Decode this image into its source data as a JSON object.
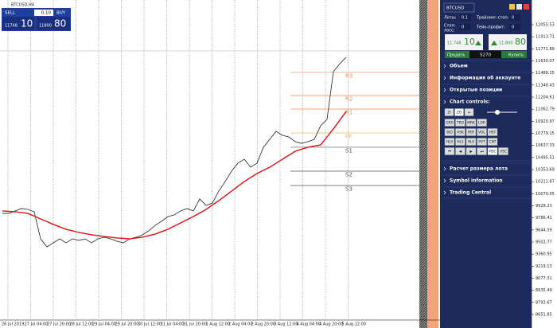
{
  "window": {
    "title": "BTCUSD,H4"
  },
  "trade_panel": {
    "sell": "SELL",
    "buy": "BUY",
    "lot": "0.10",
    "bid_prefix": "11748",
    "bid_big": "10",
    "ask_prefix": "11800",
    "ask_big": "80"
  },
  "chart_data": {
    "type": "line",
    "x_labels": [
      "26 Jul 2019",
      "27 Jul 04:00",
      "27 Jul 20:00",
      "28 Jul 12:00",
      "29 Jul 04:00",
      "29 Jul 20:00",
      "30 Jul 12:00",
      "31 Jul 04:00",
      "31 Jul 20:00",
      "1 Aug 12:00",
      "2 Aug 04:00",
      "2 Aug 20:00",
      "3 Aug 12:00",
      "4 Aug 04:00",
      "4 Aug 20:00",
      "5 Aug 12:00"
    ],
    "series": [
      {
        "color": "#222222",
        "values": [
          9839,
          9839,
          9868,
          9896,
          9886,
          9858,
          9540,
          9447,
          9493,
          9540,
          9493,
          9540,
          9522,
          9540,
          9493,
          9540,
          9559,
          9540,
          9512,
          9493,
          9540,
          9559,
          9587,
          9634,
          9699,
          9746,
          9802,
          9821,
          9868,
          9896,
          9868,
          10008,
          9933,
          9961,
          10101,
          10213,
          10335,
          10429,
          10475,
          10382,
          10429,
          10616,
          10709,
          10803,
          10756,
          10737,
          10681,
          10662,
          10681,
          10709,
          10868,
          10943,
          11504,
          11597,
          11672
        ]
      },
      {
        "color": "#dd1111",
        "values": [
          9868,
          9863,
          9858,
          9849,
          9839,
          9807,
          9774,
          9742,
          9709,
          9681,
          9652,
          9634,
          9615,
          9601,
          9587,
          9578,
          9568,
          9559,
          9550,
          9545,
          9540,
          9550,
          9559,
          9578,
          9596,
          9624,
          9652,
          9690,
          9727,
          9765,
          9802,
          9844,
          9886,
          9938,
          9989,
          10045,
          10101,
          10157,
          10213,
          10260,
          10307,
          10345,
          10382,
          10429,
          10475,
          10522,
          10569,
          10593,
          10616,
          10630,
          10644,
          10738,
          10831,
          10934,
          11036
        ]
      }
    ],
    "bid_line": 11748,
    "pivots": [
      {
        "label": "R3",
        "value": 11495,
        "color": "#f08a4b"
      },
      {
        "label": "R2",
        "value": 11223,
        "color": "#f08a4b"
      },
      {
        "label": "R1",
        "value": 11064,
        "color": "#f08a4b"
      },
      {
        "label": "PP",
        "value": 10784,
        "color": "#f2c14a"
      },
      {
        "label": "S1",
        "value": 10616,
        "color": "#555555"
      },
      {
        "label": "S2",
        "value": 10335,
        "color": "#555555"
      },
      {
        "label": "S3",
        "value": 10167,
        "color": "#555555"
      }
    ],
    "ylim": [
      8492.89,
      12345.4
    ],
    "yticks": [
      12055.53,
      11913.71,
      11771.89,
      11630.07,
      11488.25,
      11346.43,
      11204.61,
      11062.79,
      10920.97,
      10779.15,
      10637.33,
      10495.51,
      10353.69,
      10211.87,
      10070.05,
      9928.23,
      9786.41,
      9644.59,
      9502.77,
      9360.95,
      9219.13,
      9077.31,
      8935.49,
      8793.67,
      8651.85
    ],
    "grid": true
  },
  "side_panel": {
    "symbol": "BTCUSD",
    "lots_label": "Лоты:",
    "lots": "0.1",
    "trailing_label": "Трейлинг-стоп:",
    "trailing": "0",
    "sl_label_1": "Стоп-",
    "sl_label_2": "лосс:",
    "sl": "0",
    "tp_label": "Тейк-профит:",
    "tp": "0",
    "sell_small": "11,748",
    "sell_big": "10",
    "buy_small": "11,800",
    "buy_big": "80",
    "spread": "5270",
    "sell": "Продать",
    "buy": "Купить",
    "sections_top": [
      "Объем",
      "Информация об аккаунте",
      "Открытые позиции"
    ],
    "controls_title": "Chart controls:",
    "controls": [
      [
        "ZI",
        "ZO",
        "↔"
      ],
      [
        "GRD",
        "TRD",
        "MRK",
        "LDR"
      ],
      [
        "BID",
        "ASK",
        "PER",
        "VOL",
        "HST"
      ],
      [
        "HL0",
        "HL1",
        "HLS",
        "PVT",
        "CNT"
      ],
      [
        "⏮",
        "◀",
        "▶",
        "⏭",
        "HSC",
        "VSC"
      ]
    ],
    "sections_bottom": [
      "Расчет размера лота",
      "Symbol information",
      "Trading Central"
    ]
  }
}
